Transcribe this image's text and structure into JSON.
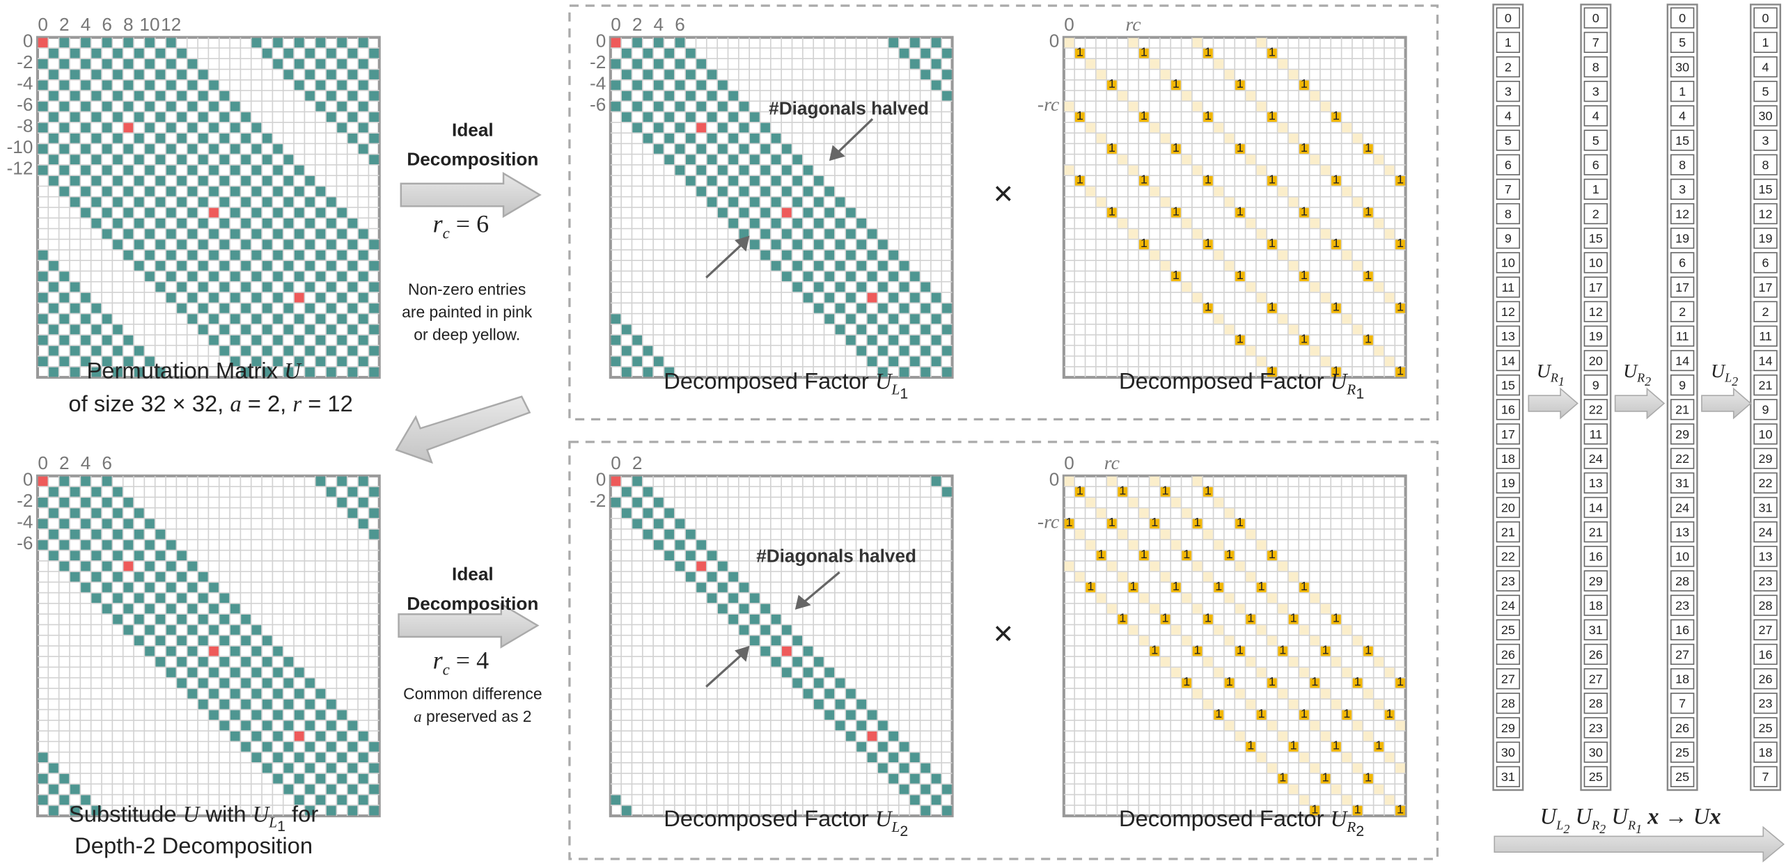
{
  "main_matrix": {
    "title_line1": "Permutation Matrix ",
    "title_symbol": "U",
    "title_line2": "of size 32 × 32, a = 2, r = 12"
  },
  "depth2": {
    "line1": "Substitude ",
    "symbol": "U",
    "mid": " with ",
    "sym2": "U",
    "sub2": "L1",
    "tail": " for",
    "line2": "Depth-2 Decomposition"
  },
  "step1": {
    "title1": "Ideal",
    "title2": "Decomposition",
    "rc": "r_c = 6",
    "note1": "Non-zero entries",
    "note2": "are painted in pink",
    "note3": "or deep yellow."
  },
  "step2": {
    "title1": "Ideal",
    "title2": "Decomposition",
    "rc": "r_c = 4",
    "note1": "Common difference",
    "note2": "a preserved as 2"
  },
  "factors": {
    "UL1": "Decomposed Factor U_L1",
    "UR1": "Decomposed Factor U_R1",
    "UL2": "Decomposed Factor U_L2",
    "UR2": "Decomposed Factor U_R2",
    "annotation": "#Diagonals halved"
  },
  "axes": {
    "main_x": [
      "0",
      "2",
      "4",
      "6",
      "8",
      "10",
      "12"
    ],
    "main_y": [
      "0",
      "-2",
      "-4",
      "-6",
      "-8",
      "-10",
      "-12"
    ],
    "l1_x": [
      "0",
      "2",
      "4",
      "6"
    ],
    "l1_y": [
      "0",
      "-2",
      "-4",
      "-6"
    ],
    "l2_x": [
      "0",
      "2"
    ],
    "l2_y": [
      "0",
      "-2"
    ],
    "r_x": [
      "0",
      "r_c"
    ],
    "r_y": [
      "0",
      "-r_c"
    ]
  },
  "vectors": {
    "v0": [
      "0",
      "1",
      "2",
      "3",
      "4",
      "5",
      "6",
      "7",
      "8",
      "9",
      "10",
      "11",
      "12",
      "13",
      "14",
      "15",
      "16",
      "17",
      "18",
      "19",
      "20",
      "21",
      "22",
      "23",
      "24",
      "25",
      "26",
      "27",
      "28",
      "29",
      "30",
      "31"
    ],
    "v1": [
      "0",
      "7",
      "8",
      "3",
      "4",
      "5",
      "6",
      "1",
      "2",
      "15",
      "10",
      "17",
      "12",
      "19",
      "20",
      "9",
      "22",
      "11",
      "24",
      "13",
      "14",
      "21",
      "16",
      "29",
      "18",
      "31",
      "26",
      "27",
      "28",
      "23",
      "30",
      "25"
    ],
    "v2": [
      "0",
      "5",
      "30",
      "1",
      "4",
      "15",
      "8",
      "3",
      "12",
      "19",
      "6",
      "17",
      "2",
      "11",
      "14",
      "9",
      "21",
      "29",
      "22",
      "31",
      "24",
      "13",
      "10",
      "28",
      "23",
      "16",
      "27",
      "18",
      "7",
      "26",
      "25",
      "25"
    ],
    "v3": [
      "0",
      "1",
      "4",
      "5",
      "30",
      "3",
      "8",
      "15",
      "12",
      "19",
      "6",
      "17",
      "2",
      "11",
      "14",
      "21",
      "9",
      "10",
      "29",
      "22",
      "31",
      "24",
      "13",
      "23",
      "28",
      "27",
      "16",
      "26",
      "23",
      "25",
      "18",
      "7"
    ],
    "ops": [
      "U_R1",
      "U_R2",
      "U_L2"
    ],
    "formula": "U_L2 U_R2 U_R1 x → Ux"
  }
}
